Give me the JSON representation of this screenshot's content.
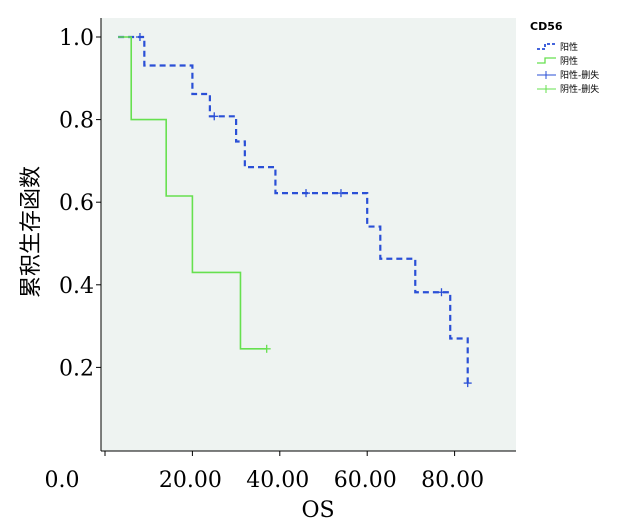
{
  "chart_data": {
    "type": "line",
    "title": "",
    "xlabel": "OS",
    "ylabel": "累积生存函数",
    "xlim": [
      0,
      90
    ],
    "ylim": [
      0,
      1.0
    ],
    "x_ticks": [
      {
        "value": 0,
        "label": "0.0"
      },
      {
        "value": 20,
        "label": "20.00"
      },
      {
        "value": 40,
        "label": "40.00"
      },
      {
        "value": 60,
        "label": "60.00"
      },
      {
        "value": 80,
        "label": "80.00"
      }
    ],
    "y_ticks": [
      {
        "value": 0.2,
        "label": "0.2"
      },
      {
        "value": 0.4,
        "label": "0.4"
      },
      {
        "value": 0.6,
        "label": "0.6"
      },
      {
        "value": 0.8,
        "label": "0.8"
      },
      {
        "value": 1.0,
        "label": "1.0"
      }
    ],
    "grid": false,
    "background": "#eef3f1",
    "legend": {
      "title": "CD56",
      "position": "right",
      "entries": [
        {
          "label": "阳性",
          "style": "step-dashed",
          "color": "#2a4fd6"
        },
        {
          "label": "阴性",
          "style": "step-solid",
          "color": "#66e04f"
        },
        {
          "label": "阳性-删失",
          "style": "censor",
          "color": "#2a4fd6"
        },
        {
          "label": "阴性-删失",
          "style": "censor",
          "color": "#66e04f"
        }
      ]
    },
    "series": [
      {
        "name": "阳性",
        "color": "#2a4fd6",
        "dash": true,
        "steps": [
          [
            3,
            1.0
          ],
          [
            9,
            0.931
          ],
          [
            20,
            0.862
          ],
          [
            24,
            0.808
          ],
          [
            30,
            0.747
          ],
          [
            32,
            0.685
          ],
          [
            39,
            0.622
          ],
          [
            60,
            0.541
          ],
          [
            63,
            0.463
          ],
          [
            71,
            0.382
          ],
          [
            79,
            0.27
          ],
          [
            83,
            0.162
          ]
        ],
        "censored": [
          [
            8,
            1.0
          ],
          [
            25,
            0.808
          ],
          [
            46,
            0.622
          ],
          [
            54,
            0.622
          ],
          [
            77,
            0.382
          ],
          [
            83,
            0.162
          ]
        ]
      },
      {
        "name": "阴性",
        "color": "#66e04f",
        "dash": false,
        "steps": [
          [
            3,
            1.0
          ],
          [
            6,
            0.8
          ],
          [
            14,
            0.615
          ],
          [
            20,
            0.43
          ],
          [
            31,
            0.245
          ],
          [
            37,
            0.245
          ]
        ],
        "censored": [
          [
            37,
            0.245
          ]
        ]
      }
    ]
  }
}
